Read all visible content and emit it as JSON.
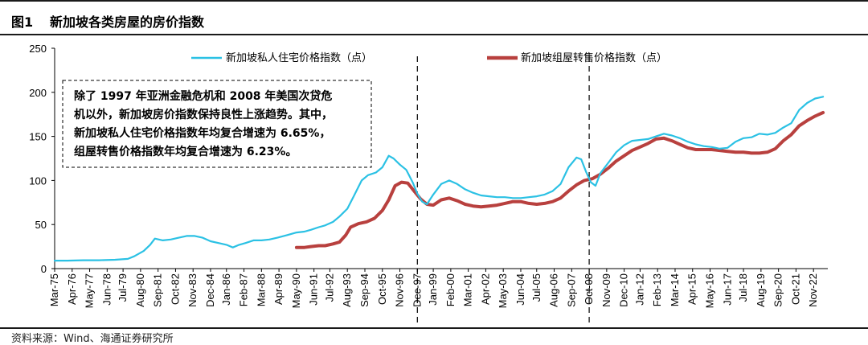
{
  "header": {
    "figure_label": "图1",
    "title": "新加坡各类房屋的房价指数"
  },
  "source": "资料来源：Wind、海通证券研究所",
  "colors": {
    "private": "#2BC1E4",
    "hdb": "#B8403E",
    "axis": "#000000"
  },
  "chart_data": {
    "type": "line",
    "title": "",
    "xlabel": "",
    "ylabel": "",
    "ylim": [
      0,
      250
    ],
    "yticks": [
      0,
      50,
      100,
      150,
      200,
      250
    ],
    "xlim": [
      1975.2,
      2023.8
    ],
    "grid": false,
    "legend_position": "top",
    "x_ticks": [
      {
        "label": "Mar-75",
        "x": 1975.2
      },
      {
        "label": "Apr-76",
        "x": 1976.3
      },
      {
        "label": "May-77",
        "x": 1977.4
      },
      {
        "label": "Jun-78",
        "x": 1978.5
      },
      {
        "label": "Jul-79",
        "x": 1979.5
      },
      {
        "label": "Aug-80",
        "x": 1980.6
      },
      {
        "label": "Sep-81",
        "x": 1981.7
      },
      {
        "label": "Oct-82",
        "x": 1982.8
      },
      {
        "label": "Nov-83",
        "x": 1983.9
      },
      {
        "label": "Dec-84",
        "x": 1985.0
      },
      {
        "label": "Jan-86",
        "x": 1986.0
      },
      {
        "label": "Feb-87",
        "x": 1987.1
      },
      {
        "label": "Mar-88",
        "x": 1988.2
      },
      {
        "label": "Apr-89",
        "x": 1989.3
      },
      {
        "label": "May-90",
        "x": 1990.4
      },
      {
        "label": "Jun-91",
        "x": 1991.5
      },
      {
        "label": "Jul-92",
        "x": 1992.5
      },
      {
        "label": "Aug-93",
        "x": 1993.6
      },
      {
        "label": "Sep-94",
        "x": 1994.7
      },
      {
        "label": "Oct-95",
        "x": 1995.8
      },
      {
        "label": "Nov-96",
        "x": 1996.9
      },
      {
        "label": "Dec-97",
        "x": 1998.0
      },
      {
        "label": "Jan-99",
        "x": 1999.0
      },
      {
        "label": "Feb-00",
        "x": 2000.1
      },
      {
        "label": "Mar-01",
        "x": 2001.2
      },
      {
        "label": "Apr-02",
        "x": 2002.3
      },
      {
        "label": "May-03",
        "x": 2003.4
      },
      {
        "label": "Jun-04",
        "x": 2004.5
      },
      {
        "label": "Jul-05",
        "x": 2005.5
      },
      {
        "label": "Aug-06",
        "x": 2006.6
      },
      {
        "label": "Sep-07",
        "x": 2007.7
      },
      {
        "label": "Oct-08",
        "x": 2008.8
      },
      {
        "label": "Nov-09",
        "x": 2009.9
      },
      {
        "label": "Dec-10",
        "x": 2011.0
      },
      {
        "label": "Jan-12",
        "x": 2012.0
      },
      {
        "label": "Feb-13",
        "x": 2013.1
      },
      {
        "label": "Mar-14",
        "x": 2014.2
      },
      {
        "label": "Apr-15",
        "x": 2015.3
      },
      {
        "label": "May-16",
        "x": 2016.4
      },
      {
        "label": "Jun-17",
        "x": 2017.5
      },
      {
        "label": "Jul-18",
        "x": 2018.5
      },
      {
        "label": "Aug-19",
        "x": 2019.6
      },
      {
        "label": "Sep-20",
        "x": 2020.7
      },
      {
        "label": "Oct-21",
        "x": 2021.8
      },
      {
        "label": "Nov-22",
        "x": 2022.9
      }
    ],
    "reference_lines": [
      {
        "x": 1998.0
      },
      {
        "x": 2008.8
      }
    ],
    "series": [
      {
        "name": "新加坡私人住宅价格指数（点）",
        "color": "#2BC1E4",
        "points": [
          [
            1975.2,
            9
          ],
          [
            1976.0,
            9
          ],
          [
            1977.0,
            9.5
          ],
          [
            1978.0,
            9.5
          ],
          [
            1979.0,
            10
          ],
          [
            1979.8,
            11
          ],
          [
            1980.2,
            14
          ],
          [
            1980.8,
            20
          ],
          [
            1981.2,
            27
          ],
          [
            1981.5,
            34
          ],
          [
            1982.0,
            32
          ],
          [
            1982.5,
            33
          ],
          [
            1983.0,
            35
          ],
          [
            1983.5,
            37
          ],
          [
            1984.0,
            37
          ],
          [
            1984.5,
            35
          ],
          [
            1985.0,
            31
          ],
          [
            1985.5,
            29
          ],
          [
            1986.0,
            27
          ],
          [
            1986.4,
            24
          ],
          [
            1986.8,
            27
          ],
          [
            1987.2,
            29
          ],
          [
            1987.7,
            32
          ],
          [
            1988.2,
            32
          ],
          [
            1988.7,
            33
          ],
          [
            1989.2,
            35
          ],
          [
            1989.8,
            38
          ],
          [
            1990.4,
            41
          ],
          [
            1990.9,
            42
          ],
          [
            1991.3,
            44
          ],
          [
            1991.8,
            47
          ],
          [
            1992.2,
            49
          ],
          [
            1992.7,
            53
          ],
          [
            1993.1,
            59
          ],
          [
            1993.6,
            68
          ],
          [
            1994.0,
            82
          ],
          [
            1994.5,
            100
          ],
          [
            1994.9,
            106
          ],
          [
            1995.4,
            109
          ],
          [
            1995.8,
            115
          ],
          [
            1996.2,
            128
          ],
          [
            1996.5,
            125
          ],
          [
            1996.9,
            118
          ],
          [
            1997.3,
            112
          ],
          [
            1997.7,
            98
          ],
          [
            1998.0,
            85
          ],
          [
            1998.3,
            76
          ],
          [
            1998.6,
            73
          ],
          [
            1999.0,
            84
          ],
          [
            1999.5,
            96
          ],
          [
            2000.0,
            100
          ],
          [
            2000.5,
            96
          ],
          [
            2001.0,
            90
          ],
          [
            2001.5,
            86
          ],
          [
            2002.0,
            83
          ],
          [
            2002.5,
            82
          ],
          [
            2003.0,
            81
          ],
          [
            2003.5,
            81
          ],
          [
            2004.0,
            80
          ],
          [
            2004.5,
            80
          ],
          [
            2005.0,
            81
          ],
          [
            2005.5,
            82
          ],
          [
            2006.0,
            84
          ],
          [
            2006.5,
            88
          ],
          [
            2007.0,
            96
          ],
          [
            2007.5,
            115
          ],
          [
            2008.0,
            126
          ],
          [
            2008.3,
            124
          ],
          [
            2008.6,
            110
          ],
          [
            2008.9,
            98
          ],
          [
            2009.2,
            94
          ],
          [
            2009.5,
            108
          ],
          [
            2010.0,
            120
          ],
          [
            2010.5,
            132
          ],
          [
            2011.0,
            140
          ],
          [
            2011.5,
            145
          ],
          [
            2012.0,
            146
          ],
          [
            2012.5,
            147
          ],
          [
            2013.0,
            150
          ],
          [
            2013.5,
            153
          ],
          [
            2014.0,
            151
          ],
          [
            2014.5,
            148
          ],
          [
            2015.0,
            144
          ],
          [
            2015.5,
            141
          ],
          [
            2016.0,
            139
          ],
          [
            2016.5,
            138
          ],
          [
            2017.0,
            136
          ],
          [
            2017.5,
            137
          ],
          [
            2018.0,
            144
          ],
          [
            2018.5,
            148
          ],
          [
            2019.0,
            149
          ],
          [
            2019.5,
            153
          ],
          [
            2020.0,
            152
          ],
          [
            2020.5,
            154
          ],
          [
            2021.0,
            160
          ],
          [
            2021.5,
            165
          ],
          [
            2022.0,
            180
          ],
          [
            2022.5,
            188
          ],
          [
            2023.0,
            193
          ],
          [
            2023.5,
            195
          ]
        ]
      },
      {
        "name": "新加坡组屋转售价格指数（点）",
        "color": "#B8403E",
        "points": [
          [
            1990.4,
            24
          ],
          [
            1990.9,
            24
          ],
          [
            1991.3,
            25
          ],
          [
            1991.8,
            26
          ],
          [
            1992.2,
            26
          ],
          [
            1992.7,
            28
          ],
          [
            1993.1,
            30
          ],
          [
            1993.5,
            38
          ],
          [
            1993.8,
            47
          ],
          [
            1994.3,
            51
          ],
          [
            1994.8,
            53
          ],
          [
            1995.3,
            57
          ],
          [
            1995.8,
            66
          ],
          [
            1996.2,
            78
          ],
          [
            1996.6,
            94
          ],
          [
            1997.0,
            98
          ],
          [
            1997.4,
            97
          ],
          [
            1997.8,
            88
          ],
          [
            1998.2,
            79
          ],
          [
            1998.6,
            73
          ],
          [
            1999.0,
            72
          ],
          [
            1999.5,
            78
          ],
          [
            2000.0,
            80
          ],
          [
            2000.5,
            77
          ],
          [
            2001.0,
            73
          ],
          [
            2001.5,
            71
          ],
          [
            2002.0,
            70
          ],
          [
            2002.5,
            71
          ],
          [
            2003.0,
            72
          ],
          [
            2003.5,
            74
          ],
          [
            2004.0,
            76
          ],
          [
            2004.5,
            76
          ],
          [
            2005.0,
            74
          ],
          [
            2005.5,
            73
          ],
          [
            2006.0,
            74
          ],
          [
            2006.5,
            76
          ],
          [
            2007.0,
            80
          ],
          [
            2007.5,
            88
          ],
          [
            2008.0,
            95
          ],
          [
            2008.5,
            100
          ],
          [
            2009.0,
            102
          ],
          [
            2009.5,
            107
          ],
          [
            2010.0,
            114
          ],
          [
            2010.5,
            122
          ],
          [
            2011.0,
            128
          ],
          [
            2011.5,
            134
          ],
          [
            2012.0,
            138
          ],
          [
            2012.5,
            142
          ],
          [
            2013.0,
            147
          ],
          [
            2013.5,
            148
          ],
          [
            2014.0,
            145
          ],
          [
            2014.5,
            141
          ],
          [
            2015.0,
            137
          ],
          [
            2015.5,
            135
          ],
          [
            2016.0,
            135
          ],
          [
            2016.5,
            135
          ],
          [
            2017.0,
            134
          ],
          [
            2017.5,
            133
          ],
          [
            2018.0,
            132
          ],
          [
            2018.5,
            132
          ],
          [
            2019.0,
            131
          ],
          [
            2019.5,
            131
          ],
          [
            2020.0,
            132
          ],
          [
            2020.5,
            136
          ],
          [
            2021.0,
            145
          ],
          [
            2021.5,
            152
          ],
          [
            2022.0,
            162
          ],
          [
            2022.5,
            168
          ],
          [
            2023.0,
            173
          ],
          [
            2023.5,
            177
          ]
        ]
      }
    ],
    "annotation": {
      "lines": [
        "除了 1997 年亚洲金融危机和 2008 年美国次贷危",
        "机以外，新加坡房价指数保持良性上涨趋势。其中，",
        "新加坡私人住宅价格指数年均复合增速为 6.65%，",
        "组屋转售价格指数年均复合增速为 6.23%。"
      ]
    }
  }
}
